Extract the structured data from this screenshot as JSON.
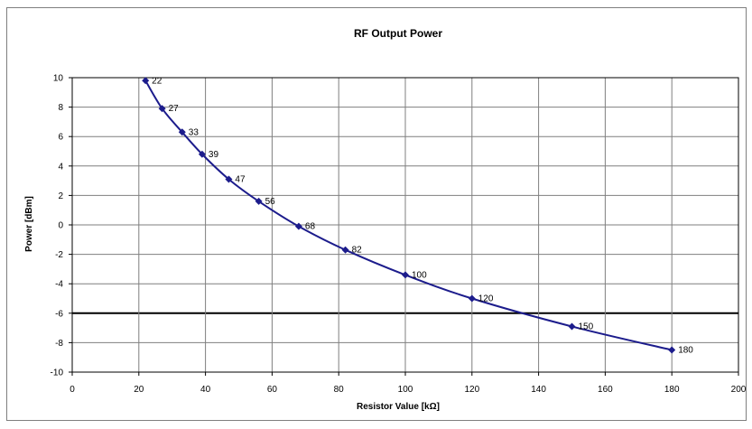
{
  "chart_data": {
    "type": "line",
    "title": "RF Output Power",
    "xlabel": "Resistor Value [kΩ]",
    "ylabel": "Power [dBm]",
    "xlim": [
      0,
      200
    ],
    "ylim": [
      -10,
      10
    ],
    "xticks": [
      0,
      20,
      40,
      60,
      80,
      100,
      120,
      140,
      160,
      180,
      200
    ],
    "yticks": [
      10,
      8,
      6,
      4,
      2,
      0,
      -2,
      -4,
      -6,
      -8,
      -10
    ],
    "grid": true,
    "legend": "none",
    "colors": {
      "series": "#1c1c8c",
      "grid": "#7f7f7f",
      "highlight": "#000000"
    },
    "series": [
      {
        "x": [
          22,
          27,
          33,
          39,
          47,
          56,
          68,
          82,
          100,
          120,
          150,
          180
        ],
        "y": [
          9.8,
          7.9,
          6.3,
          4.8,
          3.1,
          1.6,
          -0.1,
          -1.7,
          -3.4,
          -5.0,
          -6.9,
          -8.5
        ],
        "point_labels": [
          "22",
          "27",
          "33",
          "39",
          "47",
          "56",
          "68",
          "82",
          "100",
          "120",
          "150",
          "180"
        ]
      }
    ]
  }
}
